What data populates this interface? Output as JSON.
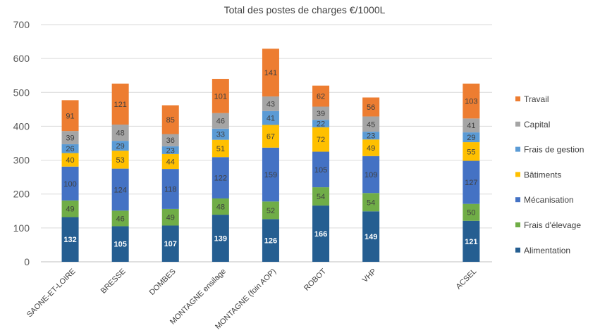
{
  "chart_data": {
    "type": "bar",
    "stacked": true,
    "title": "Total des postes de charges €/1000L",
    "xlabel": "",
    "ylabel": "",
    "ylim": [
      0,
      700
    ],
    "yticks": [
      0,
      100,
      200,
      300,
      400,
      500,
      600,
      700
    ],
    "grid": true,
    "legend_position": "right",
    "categories": [
      "SAONE-ET-LOIRE",
      "BRESSE",
      "DOMBES",
      "MONTAGNE ensilage",
      "MONTAGNE (foin AOP)",
      "ROBOT",
      "VHP",
      "",
      "ACSEL"
    ],
    "series": [
      {
        "name": "Alimentation",
        "color": "#255e91",
        "label_color": "#ffffff",
        "label_bold": true,
        "values": [
          132,
          105,
          107,
          139,
          126,
          166,
          149,
          null,
          121
        ]
      },
      {
        "name": "Frais d'élevage",
        "color": "#70ad47",
        "label_color": "#404040",
        "label_bold": false,
        "values": [
          49,
          46,
          49,
          48,
          52,
          54,
          54,
          null,
          50
        ]
      },
      {
        "name": "Mécanisation",
        "color": "#4472c4",
        "label_color": "#404040",
        "label_bold": false,
        "values": [
          100,
          124,
          118,
          122,
          159,
          105,
          109,
          null,
          127
        ]
      },
      {
        "name": "Bâtiments",
        "color": "#ffc000",
        "label_color": "#404040",
        "label_bold": false,
        "values": [
          40,
          53,
          44,
          51,
          67,
          72,
          49,
          null,
          55
        ]
      },
      {
        "name": "Frais de gestion",
        "color": "#5b9bd5",
        "label_color": "#404040",
        "label_bold": false,
        "values": [
          26,
          29,
          23,
          33,
          41,
          22,
          23,
          null,
          29
        ]
      },
      {
        "name": "Capital",
        "color": "#a5a5a5",
        "label_color": "#404040",
        "label_bold": false,
        "values": [
          39,
          48,
          36,
          46,
          43,
          39,
          45,
          null,
          41
        ]
      },
      {
        "name": "Travail",
        "color": "#ed7d31",
        "label_color": "#404040",
        "label_bold": false,
        "values": [
          91,
          121,
          85,
          101,
          141,
          62,
          56,
          null,
          103
        ]
      }
    ],
    "legend_order": [
      "Travail",
      "Capital",
      "Frais de gestion",
      "Bâtiments",
      "Mécanisation",
      "Frais d'élevage",
      "Alimentation"
    ]
  }
}
